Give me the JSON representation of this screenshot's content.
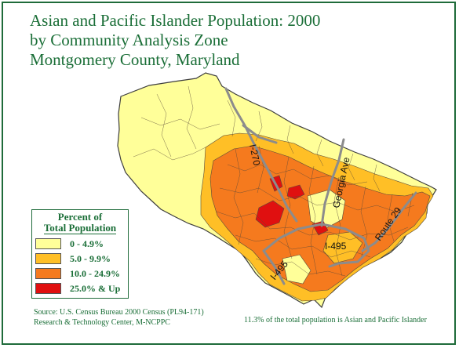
{
  "title_lines": [
    "Asian and Pacific Islander Population: 2000",
    "by Community Analysis Zone",
    "Montgomery County, Maryland"
  ],
  "legend": {
    "title_lines": [
      "Percent of",
      "Total Population"
    ],
    "items": [
      {
        "label": "0 - 4.9%",
        "color": "#ffff99"
      },
      {
        "label": "5.0 - 9.9%",
        "color": "#ffbf26"
      },
      {
        "label": "10.0 - 24.9%",
        "color": "#f57a1e"
      },
      {
        "label": "25.0% & Up",
        "color": "#e01010"
      }
    ]
  },
  "highways": {
    "i270": "I-270",
    "georgia_ave": "Georgia Ave",
    "route_29": "Route 29",
    "i495_a": "I-495",
    "i495_b": "I-495"
  },
  "source_lines": [
    "Source: U.S. Census Bureau 2000 Census (PL94-171)",
    "Research & Technology Center, M-NCPPC"
  ],
  "note": "11.3% of the total population is Asian and Pacific Islander",
  "colors": {
    "border": "#1f6b3a",
    "text": "#1a6e37",
    "road": "#8c8c8c",
    "zone_line": "#5a4a3a"
  }
}
